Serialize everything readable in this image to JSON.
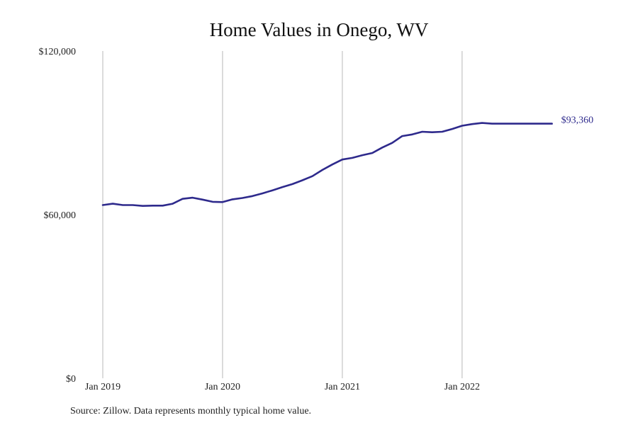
{
  "chart_data": {
    "type": "line",
    "title": "Home Values in Onego, WV",
    "xlabel": "",
    "ylabel": "",
    "source": "Source: Zillow. Data represents monthly typical home value.",
    "x_start": "2019-01",
    "x_ticks": [
      "Jan 2019",
      "Jan 2020",
      "Jan 2021",
      "Jan 2022"
    ],
    "y_ticks": [
      "$0",
      "$60,000",
      "$120,000"
    ],
    "ylim": [
      0,
      120000
    ],
    "grid": "vertical lines at x ticks",
    "line_color": "#2e2a8c",
    "gridline_color": "#b8b8b8",
    "end_label": "$93,360",
    "series": [
      {
        "x": [
          "2019-01",
          "2019-02",
          "2019-03",
          "2019-04",
          "2019-05",
          "2019-06",
          "2019-07",
          "2019-08",
          "2019-09",
          "2019-10",
          "2019-11",
          "2019-12",
          "2020-01",
          "2020-02",
          "2020-03",
          "2020-04",
          "2020-05",
          "2020-06",
          "2020-07",
          "2020-08",
          "2020-09",
          "2020-10",
          "2020-11",
          "2020-12",
          "2021-01",
          "2021-02",
          "2021-03",
          "2021-04",
          "2021-05",
          "2021-06",
          "2021-07",
          "2021-08",
          "2021-09",
          "2021-10",
          "2021-11",
          "2021-12",
          "2022-01",
          "2022-02",
          "2022-03",
          "2022-04",
          "2022-05",
          "2022-06",
          "2022-07",
          "2022-08",
          "2022-09",
          "2022-10"
        ],
        "values": [
          63500,
          64000,
          63500,
          63500,
          63200,
          63300,
          63300,
          64000,
          65800,
          66200,
          65500,
          64700,
          64600,
          65600,
          66100,
          66800,
          67800,
          68900,
          70100,
          71200,
          72600,
          74100,
          76400,
          78400,
          80200,
          80800,
          81800,
          82600,
          84600,
          86300,
          88800,
          89400,
          90400,
          90200,
          90400,
          91400,
          92600,
          93200,
          93600,
          93360,
          93360,
          93360,
          93360,
          93360,
          93360,
          93360
        ]
      }
    ]
  }
}
